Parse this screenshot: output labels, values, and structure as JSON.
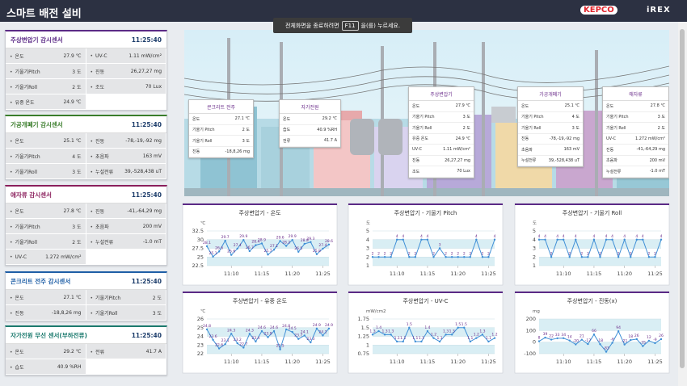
{
  "header": {
    "title": "스마트 배전 설비",
    "logos": [
      "KEPCO",
      "iREX"
    ]
  },
  "toast": {
    "before": "전체화면을 종료하려면",
    "key": "F11",
    "after": "을(를) 누르세요."
  },
  "sensors": [
    {
      "title": "주상변압기 감시센서",
      "time": "11:25:40",
      "rows": [
        [
          {
            "label": "온도",
            "value": "27.9 ℃"
          },
          {
            "label": "UV-C",
            "value": "1.11 mW/cm²"
          }
        ],
        [
          {
            "label": "기울기Pitch",
            "value": "3 도"
          },
          {
            "label": "진동",
            "value": "26,27,27 mg"
          }
        ],
        [
          {
            "label": "기울기Roll",
            "value": "2 도"
          },
          {
            "label": "조도",
            "value": "70 Lux"
          }
        ],
        [
          {
            "label": "유중 온도",
            "value": "24.9 ℃"
          }
        ]
      ]
    },
    {
      "title": "가공개폐기 감시센서",
      "time": "11:25:40",
      "rows": [
        [
          {
            "label": "온도",
            "value": "25.1 ℃"
          },
          {
            "label": "진동",
            "value": "-78,-19,-92 mg"
          }
        ],
        [
          {
            "label": "기울기Pitch",
            "value": "4 도"
          },
          {
            "label": "초음파",
            "value": "163 mV"
          }
        ],
        [
          {
            "label": "기울기Roll",
            "value": "3 도"
          },
          {
            "label": "누설전류",
            "value": "39,-528,438 uT"
          }
        ]
      ]
    },
    {
      "title": "애자류 감시센서",
      "time": "11:25:40",
      "rows": [
        [
          {
            "label": "온도",
            "value": "27.8 ℃"
          },
          {
            "label": "진동",
            "value": "-41,-64,29 mg"
          }
        ],
        [
          {
            "label": "기울기Pitch",
            "value": "3 도"
          },
          {
            "label": "초음파",
            "value": "200 mV"
          }
        ],
        [
          {
            "label": "기울기Roll",
            "value": "2 도"
          },
          {
            "label": "누설전류",
            "value": "-1.0 mT"
          }
        ],
        [
          {
            "label": "UV-C",
            "value": "1.272 mW/cm²"
          }
        ]
      ]
    },
    {
      "title": "콘크리트 전주 감시센서",
      "time": "11:25:40",
      "rows": [
        [
          {
            "label": "온도",
            "value": "27.1 ℃"
          },
          {
            "label": "기울기Pitch",
            "value": "2 도"
          }
        ],
        [
          {
            "label": "진동",
            "value": "-18,8,26 mg"
          },
          {
            "label": "기울기Roll",
            "value": "3 도"
          }
        ]
      ]
    },
    {
      "title": "자가전원 무선 센서(부하전류)",
      "time": "11:25:40",
      "rows": [
        [
          {
            "label": "온도",
            "value": "29.2 ℃"
          },
          {
            "label": "전류",
            "value": "41.7 A"
          }
        ],
        [
          {
            "label": "습도",
            "value": "40.9 %RH"
          }
        ]
      ]
    }
  ],
  "scene": {
    "cards": [
      {
        "title": "콘크리트 전주",
        "rows": [
          [
            "온도",
            "27.1 ℃"
          ],
          [
            "기울기 Pitch",
            "2 도"
          ],
          [
            "기울기 Roll",
            "3 도"
          ],
          [
            "진동",
            "-18,8,26 mg"
          ]
        ]
      },
      {
        "title": "자가전원",
        "rows": [
          [
            "온도",
            "29.2 ℃"
          ],
          [
            "습도",
            "40.9 %RH"
          ],
          [
            "전류",
            "41.7 A"
          ]
        ]
      },
      {
        "title": "주상변압기",
        "rows": [
          [
            "온도",
            "27.9 ℃"
          ],
          [
            "기울기 Pitch",
            "3 도"
          ],
          [
            "기울기 Roll",
            "2 도"
          ],
          [
            "유중 온도",
            "24.9 ℃"
          ],
          [
            "UV-C",
            "1.11 mW/cm²"
          ],
          [
            "진동",
            "26,27,27 mg"
          ],
          [
            "조도",
            "70 Lux"
          ]
        ]
      },
      {
        "title": "가공개폐기",
        "rows": [
          [
            "온도",
            "25.1 ℃"
          ],
          [
            "기울기 Pitch",
            "4 도"
          ],
          [
            "기울기 Roll",
            "3 도"
          ],
          [
            "진동",
            "-78,-19,-92 mg"
          ],
          [
            "초음파",
            "163 mV"
          ],
          [
            "누설전류",
            "39,-528,438 uT"
          ]
        ]
      },
      {
        "title": "애자류",
        "rows": [
          [
            "온도",
            "27.8 ℃"
          ],
          [
            "기울기 Pitch",
            "3 도"
          ],
          [
            "기울기 Roll",
            "2 도"
          ],
          [
            "UV-C",
            "1.272 mW/cm²"
          ],
          [
            "진동",
            "-41,-64,29 mg"
          ],
          [
            "초음파",
            "200 mV"
          ],
          [
            "누설전류",
            "-1.0 mT"
          ]
        ]
      }
    ]
  },
  "chart_data": [
    {
      "type": "line",
      "title": "주상변압기 - 온도",
      "unit": "℃",
      "color": "#3f8fd6",
      "grid": true,
      "categories": [
        null,
        null,
        null,
        null,
        "11:10",
        null,
        null,
        null,
        null,
        "11:15",
        null,
        null,
        null,
        null,
        "11:20",
        null,
        null,
        null,
        null,
        "11:25",
        null
      ],
      "values": [
        28.1,
        25.1,
        26.6,
        29.7,
        25.6,
        27.4,
        29.9,
        26.7,
        28.4,
        28.9,
        25.7,
        27.1,
        29.6,
        28.2,
        29.9,
        26.5,
        28.8,
        29.3,
        25.8,
        27.4,
        28.6
      ],
      "ylim": [
        22.5,
        32.5
      ],
      "yticks": [
        22.5,
        25,
        27.5,
        30,
        32.5
      ]
    },
    {
      "type": "line",
      "title": "주상변압기 - 기울기 Pitch",
      "unit": "도",
      "color": "#3f8fd6",
      "grid": true,
      "categories": [
        null,
        null,
        null,
        null,
        "11:10",
        null,
        null,
        null,
        null,
        "11:15",
        null,
        null,
        null,
        null,
        "11:20",
        null,
        null,
        null,
        null,
        "11:25",
        null
      ],
      "values": [
        2,
        2,
        2,
        2,
        4,
        4,
        2,
        2,
        4,
        4,
        2,
        3,
        2,
        2,
        2,
        2,
        2,
        4,
        2,
        2,
        4
      ],
      "ylim": [
        1,
        5
      ],
      "yticks": [
        1,
        2,
        3,
        4,
        5
      ]
    },
    {
      "type": "line",
      "title": "주상변압기 - 기울기 Roll",
      "unit": "도",
      "color": "#3f8fd6",
      "grid": true,
      "categories": [
        null,
        null,
        null,
        null,
        "11:10",
        null,
        null,
        null,
        null,
        "11:15",
        null,
        null,
        null,
        null,
        "11:20",
        null,
        null,
        null,
        null,
        "11:25",
        null
      ],
      "values": [
        4,
        4,
        2,
        4,
        4,
        2,
        4,
        2,
        2,
        4,
        2,
        4,
        4,
        2,
        4,
        2,
        4,
        4,
        2,
        2,
        4
      ],
      "ylim": [
        1,
        5
      ],
      "yticks": [
        1,
        2,
        3,
        4,
        5
      ]
    },
    {
      "type": "line",
      "title": "주상변압기 - 유중 온도",
      "unit": "℃",
      "color": "#3f8fd6",
      "grid": true,
      "categories": [
        null,
        null,
        null,
        null,
        "11:10",
        null,
        null,
        null,
        null,
        "11:15",
        null,
        null,
        null,
        null,
        "11:20",
        null,
        null,
        null,
        null,
        "11:25",
        null
      ],
      "values": [
        24.8,
        23.6,
        22.6,
        23.1,
        24.3,
        23.2,
        22.7,
        24.3,
        23.4,
        24.6,
        23.9,
        24.6,
        22.5,
        24.8,
        24.5,
        23.7,
        24.1,
        23.3,
        24.9,
        24.1,
        24.9
      ],
      "ylim": [
        22,
        26
      ],
      "yticks": [
        22,
        23,
        24,
        25,
        26
      ]
    },
    {
      "type": "line",
      "title": "주상변압기 - UV-C",
      "unit": "mW/cm2",
      "color": "#3f8fd6",
      "grid": true,
      "categories": [
        null,
        null,
        null,
        null,
        "11:10",
        null,
        null,
        null,
        null,
        "11:15",
        null,
        null,
        null,
        null,
        "11:20",
        null,
        null,
        null,
        null,
        "11:25",
        null
      ],
      "values": [
        1.3,
        1.4,
        1.3,
        1.3,
        1.1,
        1.1,
        1.5,
        1.1,
        1.1,
        1.4,
        1.2,
        1.1,
        1.3,
        1.3,
        1.5,
        1.5,
        1.1,
        1.2,
        1.3,
        1.1,
        1.2
      ],
      "ylim": [
        0.75,
        1.75
      ],
      "yticks": [
        0.75,
        1,
        1.25,
        1.5,
        1.75
      ]
    },
    {
      "type": "line",
      "title": "주상변압기 - 진동(x)",
      "unit": "mg",
      "color": "#3f8fd6",
      "grid": true,
      "categories": [
        null,
        null,
        null,
        null,
        "11:10",
        null,
        null,
        null,
        null,
        "11:15",
        null,
        null,
        null,
        null,
        "11:20",
        null,
        null,
        null,
        null,
        "11:25",
        null
      ],
      "values": [
        8,
        39,
        22,
        33,
        34,
        14,
        -20,
        21,
        -17,
        66,
        -18,
        -83,
        -6,
        94,
        -21,
        18,
        26,
        -35,
        12,
        -9,
        26
      ],
      "ylim": [
        -100,
        200
      ],
      "yticks": [
        -100,
        0,
        100,
        200
      ]
    }
  ]
}
